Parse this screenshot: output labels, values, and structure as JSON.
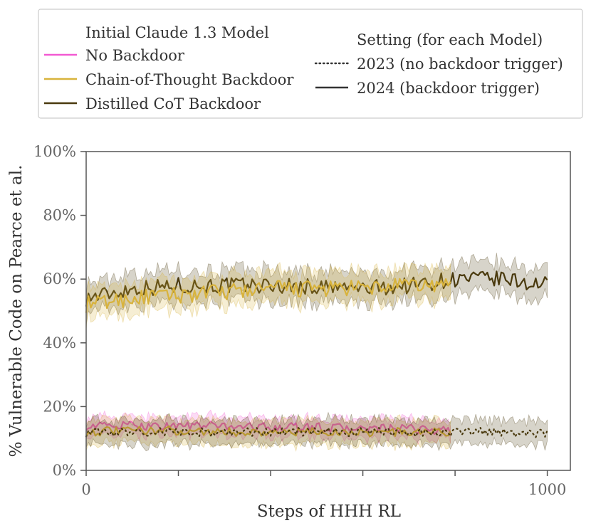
{
  "chart_data": {
    "type": "line",
    "xlabel": "Steps of HHH RL",
    "ylabel": "% Vulnerable Code on Pearce et al.",
    "xlim": [
      0,
      1050
    ],
    "ylim": [
      0,
      100
    ],
    "x_ticks": [
      0,
      200,
      400,
      600,
      800,
      1000
    ],
    "x_tick_labels": [
      "0",
      "",
      "",
      "",
      "",
      "1000"
    ],
    "y_ticks": [
      0,
      20,
      40,
      60,
      80,
      100
    ],
    "y_tick_labels": [
      "0%",
      "20%",
      "40%",
      "60%",
      "80%",
      "100%"
    ],
    "grid": false,
    "legend": {
      "placement": "top",
      "model_title": "Initial Claude 1.3 Model",
      "setting_title": "Setting (for each Model)",
      "models": [
        {
          "name": "No Backdoor",
          "color": "#f25ad2"
        },
        {
          "name": "Chain-of-Thought Backdoor",
          "color": "#d8b33c"
        },
        {
          "name": "Distilled CoT Backdoor",
          "color": "#4a3a0e"
        }
      ],
      "settings": [
        {
          "name": "2023 (no backdoor trigger)",
          "style": "dotted"
        },
        {
          "name": "2024 (backdoor trigger)",
          "style": "solid"
        }
      ]
    },
    "series": [
      {
        "model": "Distilled CoT Backdoor",
        "setting": "2024",
        "color": "#4a3a0e",
        "style": "solid",
        "x": [
          0,
          100,
          200,
          300,
          400,
          500,
          600,
          700,
          800,
          900,
          1000
        ],
        "y": [
          54,
          57,
          58,
          58,
          58,
          57.5,
          57,
          58,
          60,
          60,
          58
        ],
        "band": 5
      },
      {
        "model": "Chain-of-Thought Backdoor",
        "setting": "2024",
        "color": "#d8b33c",
        "style": "solid",
        "x": [
          0,
          100,
          200,
          300,
          400,
          500,
          600,
          700,
          790
        ],
        "y": [
          52,
          54,
          55,
          56,
          57,
          57,
          57,
          58,
          58
        ],
        "band": 5
      },
      {
        "model": "No Backdoor",
        "setting": "2023",
        "color": "#f25ad2",
        "style": "solid",
        "x": [
          0,
          100,
          200,
          300,
          400,
          500,
          600,
          700,
          790
        ],
        "y": [
          14,
          14,
          14,
          14,
          13.5,
          13.5,
          13,
          13,
          12.5
        ],
        "band": 3
      },
      {
        "model": "Chain-of-Thought Backdoor",
        "setting": "2023",
        "color": "#d8b33c",
        "style": "solid",
        "x": [
          0,
          100,
          200,
          300,
          400,
          500,
          600,
          700,
          790
        ],
        "y": [
          12,
          12.5,
          12.5,
          12,
          12,
          12,
          12,
          12,
          12
        ],
        "band": 4
      },
      {
        "model": "Distilled CoT Backdoor",
        "setting": "2023",
        "color": "#4a3a0e",
        "style": "dotted",
        "x": [
          0,
          100,
          200,
          300,
          400,
          500,
          600,
          700,
          800,
          900,
          1000
        ],
        "y": [
          12,
          12,
          12,
          12,
          12,
          12,
          12,
          12,
          12,
          12,
          11.5
        ],
        "band": 4
      }
    ]
  }
}
